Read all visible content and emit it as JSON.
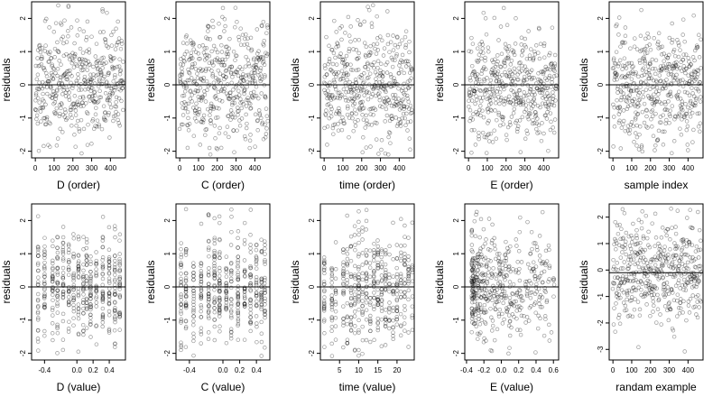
{
  "chart_data": [
    {
      "type": "scatter",
      "xlabel": "D (order)",
      "ylabel": "residuals",
      "xlim": [
        -20,
        480
      ],
      "ylim": [
        -2.2,
        2.5
      ],
      "xticks": [
        0,
        100,
        200,
        300,
        400
      ],
      "xtick_labels": [
        "0",
        "100",
        "200",
        "300",
        "400"
      ],
      "yticks": [
        -2,
        -1,
        0,
        1,
        2
      ],
      "ytick_labels": [
        "-2",
        "-1",
        "0",
        "1",
        "2"
      ],
      "hline": 0,
      "x_kind": "index",
      "n": 470,
      "seed": 11
    },
    {
      "type": "scatter",
      "xlabel": "C (order)",
      "ylabel": "residuals",
      "xlim": [
        -20,
        480
      ],
      "ylim": [
        -2.2,
        2.5
      ],
      "xticks": [
        0,
        100,
        200,
        300,
        400
      ],
      "xtick_labels": [
        "0",
        "100",
        "200",
        "300",
        "400"
      ],
      "yticks": [
        -2,
        -1,
        0,
        1,
        2
      ],
      "ytick_labels": [
        "-2",
        "-1",
        "0",
        "1",
        "2"
      ],
      "hline": 0,
      "x_kind": "index",
      "n": 470,
      "seed": 23
    },
    {
      "type": "scatter",
      "xlabel": "time (order)",
      "ylabel": "residuals",
      "xlim": [
        -20,
        480
      ],
      "ylim": [
        -2.2,
        2.5
      ],
      "xticks": [
        0,
        100,
        200,
        300,
        400
      ],
      "xtick_labels": [
        "0",
        "100",
        "200",
        "300",
        "400"
      ],
      "yticks": [
        -2,
        -1,
        0,
        1,
        2
      ],
      "ytick_labels": [
        "-2",
        "-1",
        "0",
        "1",
        "2"
      ],
      "hline": 0,
      "x_kind": "index",
      "n": 470,
      "seed": 37
    },
    {
      "type": "scatter",
      "xlabel": "E (order)",
      "ylabel": "residuals",
      "xlim": [
        -20,
        480
      ],
      "ylim": [
        -2.2,
        2.5
      ],
      "xticks": [
        0,
        100,
        200,
        300,
        400
      ],
      "xtick_labels": [
        "0",
        "100",
        "200",
        "300",
        "400"
      ],
      "yticks": [
        -2,
        -1,
        0,
        1,
        2
      ],
      "ytick_labels": [
        "-2",
        "-1",
        "0",
        "1",
        "2"
      ],
      "hline": 0,
      "x_kind": "index",
      "n": 470,
      "seed": 41
    },
    {
      "type": "scatter",
      "xlabel": "sample index",
      "ylabel": "residuals",
      "xlim": [
        -20,
        480
      ],
      "ylim": [
        -2.2,
        2.5
      ],
      "xticks": [
        0,
        100,
        200,
        300,
        400
      ],
      "xtick_labels": [
        "0",
        "100",
        "200",
        "300",
        "400"
      ],
      "yticks": [
        -2,
        -1,
        0,
        1,
        2
      ],
      "ytick_labels": [
        "-2",
        "-1",
        "0",
        "1",
        "2"
      ],
      "hline": 0,
      "x_kind": "index",
      "n": 470,
      "seed": 53
    },
    {
      "type": "scatter",
      "xlabel": "D (value)",
      "ylabel": "residuals",
      "xlim": [
        -0.56,
        0.6
      ],
      "ylim": [
        -2.2,
        2.5
      ],
      "xticks": [
        -0.4,
        0,
        0.2,
        0.4
      ],
      "xtick_labels": [
        "-0.4",
        "0.0",
        "0.2",
        "0.4"
      ],
      "yticks": [
        -2,
        -1,
        0,
        1,
        2
      ],
      "ytick_labels": [
        "-2",
        "-1",
        "0",
        "1",
        "2"
      ],
      "hline": 0,
      "x_kind": "columns",
      "x_values": [
        -0.48,
        -0.4,
        -0.3,
        -0.24,
        -0.17,
        -0.1,
        -0.04,
        0.02,
        0.08,
        0.12,
        0.17,
        0.24,
        0.32,
        0.4,
        0.47,
        0.53
      ],
      "n": 470,
      "seed": 61
    },
    {
      "type": "scatter",
      "xlabel": "C (value)",
      "ylabel": "residuals",
      "xlim": [
        -0.56,
        0.56
      ],
      "ylim": [
        -2.2,
        2.5
      ],
      "xticks": [
        -0.4,
        0,
        0.2,
        0.4
      ],
      "xtick_labels": [
        "-0.4",
        "0.0",
        "0.2",
        "0.4"
      ],
      "yticks": [
        -2,
        -1,
        0,
        1,
        2
      ],
      "ytick_labels": [
        "-2",
        "-1",
        "0",
        "1",
        "2"
      ],
      "hline": 0,
      "x_kind": "columns",
      "x_values": [
        -0.5,
        -0.44,
        -0.35,
        -0.26,
        -0.17,
        -0.1,
        -0.04,
        0.04,
        0.1,
        0.18,
        0.26,
        0.33,
        0.4,
        0.46,
        0.5
      ],
      "n": 470,
      "seed": 71
    },
    {
      "type": "scatter",
      "xlabel": "time (value)",
      "ylabel": "residuals",
      "xlim": [
        0,
        24.5
      ],
      "ylim": [
        -2.2,
        2.5
      ],
      "xticks": [
        5,
        10,
        15,
        20
      ],
      "xtick_labels": [
        "5",
        "10",
        "15",
        "20"
      ],
      "yticks": [
        -2,
        -1,
        0,
        1,
        2
      ],
      "ytick_labels": [
        "-2",
        "-1",
        "0",
        "1",
        "2"
      ],
      "hline": 0,
      "x_kind": "columns",
      "x_values": [
        1,
        3,
        4,
        6,
        7,
        8,
        9,
        10,
        11,
        12,
        13,
        14,
        15,
        16,
        17,
        18,
        19,
        20,
        21,
        22,
        23,
        24
      ],
      "n": 470,
      "seed": 83
    },
    {
      "type": "scatter",
      "xlabel": "E (value)",
      "ylabel": "residuals",
      "xlim": [
        -0.42,
        0.66
      ],
      "ylim": [
        -2.2,
        2.5
      ],
      "xticks": [
        -0.4,
        -0.2,
        0,
        0.2,
        0.4,
        0.6
      ],
      "xtick_labels": [
        "-0.4",
        "-0.2",
        "0.0",
        "0.2",
        "0.4",
        "0.6"
      ],
      "yticks": [
        -2,
        -1,
        0,
        1,
        2
      ],
      "ytick_labels": [
        "-2",
        "-1",
        "0",
        "1",
        "2"
      ],
      "hline": 0,
      "x_kind": "skewed",
      "n": 470,
      "seed": 97
    },
    {
      "type": "scatter",
      "xlabel": "randam example",
      "ylabel": "residuals",
      "xlim": [
        -20,
        480
      ],
      "ylim": [
        -3.4,
        2.5
      ],
      "xticks": [
        0,
        100,
        200,
        300,
        400
      ],
      "xtick_labels": [
        "0",
        "100",
        "200",
        "300",
        "400"
      ],
      "yticks": [
        -3,
        -2,
        -1,
        0,
        1,
        2
      ],
      "ytick_labels": [
        "-3",
        "-2",
        "-1",
        "0",
        "1",
        "2"
      ],
      "hline": -0.1,
      "x_kind": "index",
      "n": 470,
      "seed": 101,
      "spread": 1.0
    }
  ]
}
